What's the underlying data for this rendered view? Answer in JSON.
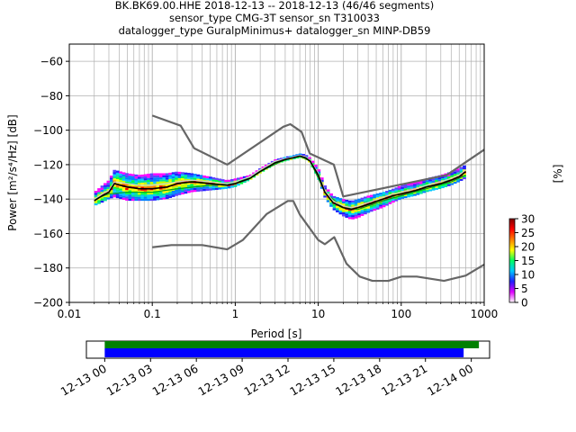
{
  "chart_data": [
    {
      "type": "heatmap",
      "title_lines": [
        "BK.BK69.00.HHE   2018-12-13 -- 2018-12-13  (46/46 segments)",
        "sensor_type CMG-3T sensor_sn T310033",
        "datalogger_type GuralpMinimus+ datalogger_sn MINP-DB59"
      ],
      "xlabel": "Period [s]",
      "ylabel": "Power [m²/s⁴/Hz] [dB]",
      "x_scale": "log",
      "xlim": [
        0.01,
        1000
      ],
      "ylim": [
        -200,
        -50
      ],
      "x_ticks": [
        {
          "value": 0.01,
          "label": "0.01"
        },
        {
          "value": 0.1,
          "label": "0.1"
        },
        {
          "value": 1,
          "label": "1"
        },
        {
          "value": 10,
          "label": "10"
        },
        {
          "value": 100,
          "label": "100"
        },
        {
          "value": 1000,
          "label": "1000"
        }
      ],
      "y_ticks": [
        -60,
        -80,
        -100,
        -120,
        -140,
        -160,
        -180,
        -200
      ],
      "grid": true,
      "colorbar": {
        "label": "[%]",
        "min": 0,
        "max": 30,
        "ticks": [
          0,
          5,
          10,
          15,
          20,
          25,
          30
        ],
        "colors": [
          "#ffffff",
          "#e000ff",
          "#2020ff",
          "#00c8ff",
          "#00ff60",
          "#ffff00",
          "#ff8000",
          "#ff0000",
          "#800000"
        ]
      },
      "series": [
        {
          "role": "new-high-noise-model",
          "color": "#666666",
          "x": [
            0.1,
            0.22,
            0.32,
            0.8,
            3.8,
            4.6,
            6.3,
            7.9,
            15.4,
            20,
            354.8,
            1000
          ],
          "y": [
            -91.5,
            -97.4,
            -110.5,
            -120,
            -98,
            -96.5,
            -101,
            -113.5,
            -120,
            -138.5,
            -126,
            -111.3
          ]
        },
        {
          "role": "new-low-noise-model",
          "color": "#666666",
          "x": [
            0.1,
            0.17,
            0.4,
            0.8,
            1.24,
            2.4,
            4.3,
            5,
            6,
            10,
            12,
            15.6,
            21.9,
            31.6,
            45,
            70,
            101,
            154,
            328,
            600,
            1000
          ],
          "y": [
            -168,
            -166.7,
            -166.7,
            -169.2,
            -163.7,
            -148.6,
            -141.1,
            -141.1,
            -149,
            -163.8,
            -166.2,
            -162.1,
            -177.5,
            -185,
            -187.5,
            -187.5,
            -185,
            -185,
            -187.5,
            -184.4,
            -178
          ]
        },
        {
          "role": "mode",
          "color": "#000000",
          "x": [
            0.02,
            0.025,
            0.03,
            0.035,
            0.05,
            0.07,
            0.1,
            0.15,
            0.2,
            0.3,
            0.5,
            0.8,
            1,
            1.5,
            2,
            3,
            4,
            5,
            6,
            7,
            8,
            10,
            12,
            15,
            20,
            25,
            30,
            40,
            60,
            80,
            100,
            150,
            200,
            300,
            400,
            500,
            600
          ],
          "y": [
            -141,
            -138,
            -136,
            -131,
            -133,
            -134,
            -134,
            -133,
            -131,
            -130,
            -131,
            -132,
            -131,
            -128,
            -124,
            -119,
            -117,
            -116,
            -115,
            -116,
            -118,
            -126,
            -136,
            -142,
            -145,
            -146,
            -145,
            -143,
            -140,
            -138,
            -137,
            -135,
            -133,
            -131,
            -129,
            -127,
            -124
          ]
        },
        {
          "role": "median",
          "color": "#d0d0d0",
          "x": [
            0.02,
            0.025,
            0.03,
            0.035,
            0.05,
            0.07,
            0.1,
            0.15,
            0.2,
            0.3,
            0.5,
            0.8,
            1,
            1.5,
            2,
            3,
            4,
            5,
            6,
            7,
            8,
            10,
            12,
            15,
            20,
            25,
            30,
            40,
            60,
            80,
            100,
            150,
            200,
            300,
            400,
            500,
            600
          ],
          "y": [
            -140,
            -137,
            -135,
            -130,
            -131,
            -132,
            -132,
            -131,
            -130,
            -129,
            -130,
            -131,
            -130,
            -127,
            -123,
            -118,
            -116.5,
            -115.5,
            -114.5,
            -115.5,
            -117.5,
            -125,
            -135,
            -141,
            -144,
            -145,
            -144,
            -142,
            -139,
            -137,
            -136,
            -134,
            -132,
            -130,
            -128,
            -126,
            -123
          ]
        },
        {
          "role": "mean",
          "color": "#00a020",
          "x": [
            0.02,
            0.03,
            0.05,
            0.1,
            0.2,
            0.5,
            1,
            2,
            4,
            6,
            8,
            12,
            20,
            30,
            60,
            100,
            200,
            400,
            600
          ],
          "y": [
            -140,
            -137,
            -136,
            -136,
            -134,
            -132,
            -131,
            -124,
            -117,
            -115,
            -118,
            -136,
            -145,
            -146,
            -141,
            -138,
            -134,
            -130,
            -126
          ]
        }
      ],
      "spread": {
        "x": [
          0.02,
          0.025,
          0.03,
          0.035,
          0.05,
          0.07,
          0.1,
          0.15,
          0.2,
          0.3,
          0.5,
          0.8,
          1,
          1.5,
          2,
          3,
          4,
          5,
          6,
          7,
          8,
          10,
          12,
          15,
          20,
          25,
          30,
          40,
          60,
          80,
          100,
          150,
          200,
          300,
          400,
          500,
          600
        ],
        "low": [
          -144,
          -142,
          -140,
          -139,
          -141,
          -141,
          -141,
          -140,
          -138,
          -136,
          -135,
          -134,
          -133,
          -129,
          -125,
          -120,
          -118,
          -117,
          -116,
          -117,
          -119,
          -128,
          -139,
          -146,
          -150,
          -152,
          -151,
          -148,
          -145,
          -142,
          -140,
          -138,
          -136,
          -134,
          -132,
          -130,
          -128
        ],
        "high": [
          -136,
          -132,
          -129,
          -123,
          -125,
          -126,
          -125,
          -125,
          -124,
          -125,
          -127,
          -129,
          -128,
          -126,
          -122,
          -117,
          -115.5,
          -114.5,
          -113.5,
          -114,
          -116,
          -122,
          -132,
          -138,
          -140,
          -141,
          -140,
          -138,
          -136,
          -134,
          -132,
          -130,
          -128,
          -126,
          -124,
          -122,
          -120
        ]
      }
    },
    {
      "type": "timeline",
      "x_ticks": [
        "12-13 00",
        "12-13 03",
        "12-13 06",
        "12-13 09",
        "12-13 12",
        "12-13 15",
        "12-13 18",
        "12-13 21",
        "12-14 00"
      ],
      "x_range_hours": [
        -1.2,
        25.2
      ],
      "bars": [
        {
          "role": "data-coverage",
          "color": "#008000",
          "start_hour": 0,
          "end_hour": 24.5
        },
        {
          "role": "psd-coverage",
          "color": "#0000ff",
          "start_hour": 0,
          "end_hour": 23.5
        }
      ]
    }
  ]
}
